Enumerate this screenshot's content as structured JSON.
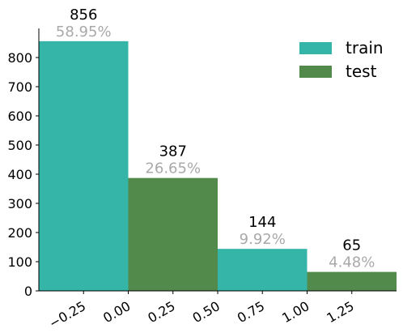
{
  "chart_data": {
    "type": "bar",
    "xlim": [
      -0.5,
      1.5
    ],
    "ylim": [
      0,
      900
    ],
    "x_ticks": [
      "−0.25",
      "0.00",
      "0.25",
      "0.50",
      "0.75",
      "1.00",
      "1.25"
    ],
    "x_tick_values": [
      -0.25,
      0.0,
      0.25,
      0.5,
      0.75,
      1.0,
      1.25
    ],
    "y_ticks": [
      "0",
      "100",
      "200",
      "300",
      "400",
      "500",
      "600",
      "700",
      "800"
    ],
    "y_tick_values": [
      0,
      100,
      200,
      300,
      400,
      500,
      600,
      700,
      800
    ],
    "grid": false,
    "legend_position": "top-right",
    "bar_width": 0.5,
    "series": [
      {
        "name": "train",
        "color": "#35b5a8",
        "bars": [
          {
            "x": -0.25,
            "value": 856,
            "count_label": "856",
            "pct_label": "58.95%"
          },
          {
            "x": 0.75,
            "value": 144,
            "count_label": "144",
            "pct_label": "9.92%"
          }
        ]
      },
      {
        "name": "test",
        "color": "#528a4b",
        "bars": [
          {
            "x": 0.25,
            "value": 387,
            "count_label": "387",
            "pct_label": "26.65%"
          },
          {
            "x": 1.25,
            "value": 65,
            "count_label": "65",
            "pct_label": "4.48%"
          }
        ]
      }
    ]
  }
}
